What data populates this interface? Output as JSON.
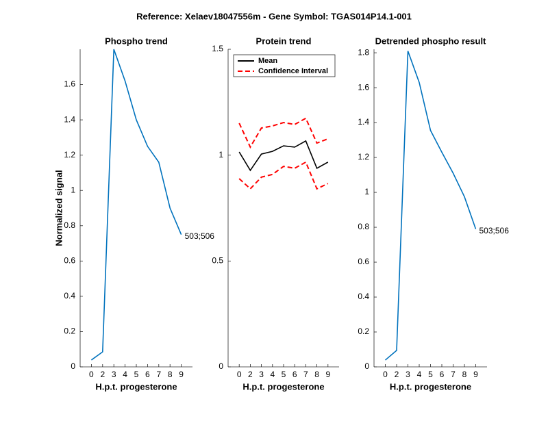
{
  "title": "Reference:  Xelaev18047556m - Gene Symbol:  TGAS014P14.1-001",
  "chart_data": [
    {
      "type": "line",
      "title": "Phospho trend",
      "ylabel": "Normalized signal",
      "xlabel": "H.p.t. progesterone",
      "categories": [
        "0",
        "2",
        "3",
        "4",
        "5",
        "6",
        "7",
        "8",
        "9"
      ],
      "series": [
        {
          "name": "Phospho trend",
          "color": "#0072bd",
          "values": [
            0.039,
            0.085,
            1.8,
            1.62,
            1.4,
            1.25,
            1.16,
            0.9,
            0.75
          ]
        }
      ],
      "annotation": "503;506",
      "ylim": [
        0,
        1.8
      ],
      "yticks": [
        0,
        0.2,
        0.4,
        0.6,
        0.8,
        1,
        1.2,
        1.4,
        1.6
      ]
    },
    {
      "type": "line",
      "title": "Protein trend",
      "xlabel": "H.p.t. progesterone",
      "categories": [
        "0",
        "2",
        "3",
        "4",
        "5",
        "6",
        "7",
        "8",
        "9"
      ],
      "series": [
        {
          "name": "Mean",
          "color": "#000000",
          "values": [
            1.015,
            0.928,
            1.005,
            1.018,
            1.044,
            1.038,
            1.067,
            0.938,
            0.967
          ]
        },
        {
          "name": "Confidence Interval",
          "color": "#ff0000",
          "dashed": true,
          "values": [
            1.151,
            1.038,
            1.128,
            1.138,
            1.154,
            1.145,
            1.174,
            1.057,
            1.077
          ],
          "lower": [
            0.889,
            0.841,
            0.896,
            0.909,
            0.947,
            0.938,
            0.967,
            0.841,
            0.866
          ]
        }
      ],
      "legend": "northwest",
      "ylim": [
        0,
        1.5
      ],
      "yticks": [
        0,
        0.5,
        1,
        1.5
      ]
    },
    {
      "type": "line",
      "title": "Detrended phospho result",
      "xlabel": "H.p.t. progesterone",
      "categories": [
        "0",
        "2",
        "3",
        "4",
        "5",
        "6",
        "7",
        "8",
        "9"
      ],
      "series": [
        {
          "name": "Detrended phospho result",
          "color": "#0072bd",
          "values": [
            0.039,
            0.094,
            1.81,
            1.63,
            1.355,
            1.23,
            1.11,
            0.975,
            0.79
          ]
        }
      ],
      "annotation": "503;506",
      "ylim": [
        0,
        1.82
      ],
      "yticks": [
        0,
        0.2,
        0.4,
        0.6,
        0.8,
        1,
        1.2,
        1.4,
        1.6,
        1.8
      ]
    }
  ]
}
